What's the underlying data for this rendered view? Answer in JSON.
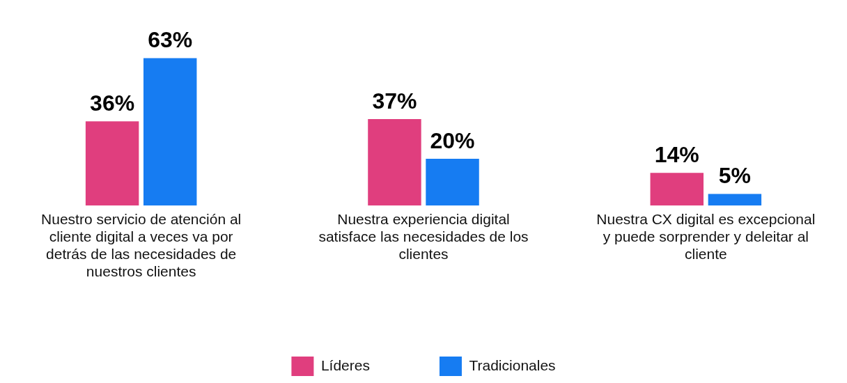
{
  "chart_data": {
    "type": "bar",
    "categories": [
      "Nuestro servicio de atención al cliente digital a veces va por detrás de las necesidades de nuestros clientes",
      "Nuestra experiencia digital satisface las necesidades de los clientes",
      "Nuestra CX digital es excepcional y puede sorprender y deleitar al cliente"
    ],
    "series": [
      {
        "name": "Líderes",
        "color": "#e03e7e",
        "values": [
          36,
          37,
          14
        ],
        "value_labels": [
          "36%",
          "37%",
          "14%"
        ]
      },
      {
        "name": "Tradicionales",
        "color": "#167cf2",
        "values": [
          63,
          20,
          5
        ],
        "value_labels": [
          "63%",
          "20%",
          "5%"
        ]
      }
    ],
    "legend": "bottom",
    "grid": false
  }
}
